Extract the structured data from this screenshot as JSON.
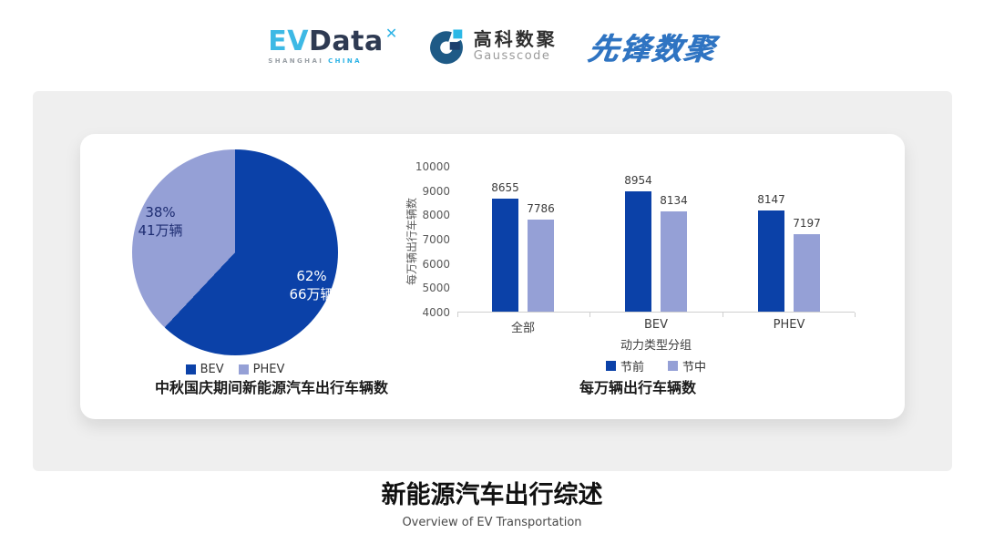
{
  "header": {
    "logos": {
      "evdata": {
        "ev": "EV",
        "data": "Data",
        "mark": "✕",
        "sub_left": "SHANGHAI",
        "sub_right": "CHINA"
      },
      "gausscode": {
        "cn": "高科数聚",
        "en": "Gausscode"
      },
      "pioneer": {
        "text": "先锋数聚"
      }
    }
  },
  "colors": {
    "series_dark_blue": "#0b41a8",
    "series_light_blue": "#95a0d6",
    "panel_gray": "#efefef"
  },
  "chart_data": [
    {
      "type": "pie",
      "title": "中秋国庆期间新能源汽车出行车辆数",
      "slices": [
        {
          "label": "BEV",
          "percent": 62,
          "pct": "62%",
          "amount": "66万辆",
          "color": "#0b41a8"
        },
        {
          "label": "PHEV",
          "percent": 38,
          "pct": "38%",
          "amount": "41万辆",
          "color": "#95a0d6"
        }
      ],
      "legend_position": "bottom",
      "start_angle_deg": 0,
      "direction": "clockwise"
    },
    {
      "type": "bar",
      "title": "每万辆出行车辆数",
      "categories": [
        "全部",
        "BEV",
        "PHEV"
      ],
      "series": [
        {
          "name": "节前",
          "values": [
            8655,
            8954,
            8147
          ],
          "color": "#0b41a8"
        },
        {
          "name": "节中",
          "values": [
            7786,
            8134,
            7197
          ],
          "color": "#95a0d6"
        }
      ],
      "xlabel": "动力类型分组",
      "ylabel": "每万辆出行车辆数",
      "ylim": [
        4000,
        10000
      ],
      "ytick_step": 1000,
      "grid": false,
      "legend_position": "bottom"
    }
  ],
  "footer": {
    "title": "新能源汽车出行综述",
    "subtitle": "Overview of EV Transportation"
  }
}
